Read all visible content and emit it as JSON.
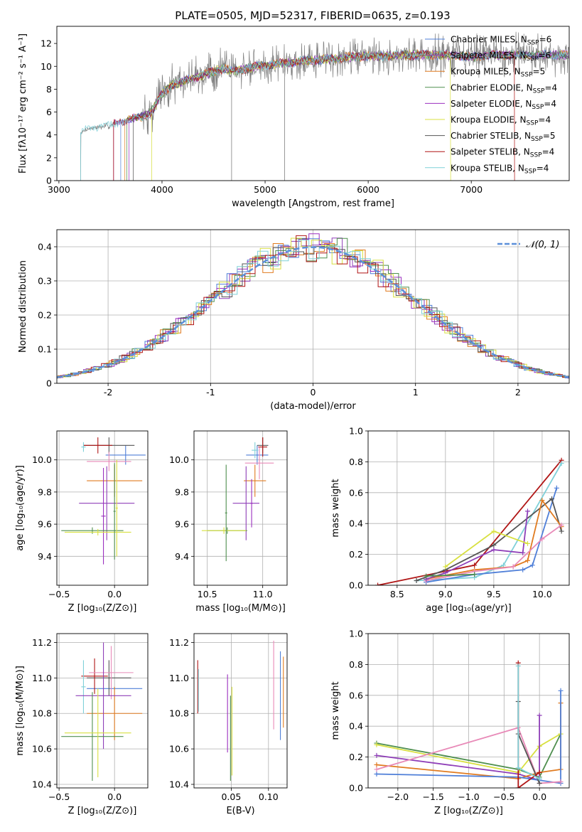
{
  "figure": {
    "title": "PLATE=0505, MJD=52317, FIBERID=0635, z=0.193"
  },
  "chart_data": [
    {
      "id": "spectrum",
      "type": "line",
      "xlabel": "wavelength [Angstrom, rest frame]",
      "ylabel": "Flux [fλ10⁻¹⁷ erg cm⁻² s⁻¹ A⁻¹]",
      "xlim": [
        2980,
        7950
      ],
      "ylim": [
        0,
        13.5
      ],
      "xticks": [
        3000,
        4000,
        5000,
        6000,
        7000
      ],
      "yticks": [
        0,
        2,
        4,
        6,
        8,
        10,
        12
      ],
      "grid": false,
      "legend_position": "right",
      "legend": [
        {
          "label": "Chabrier MILES, N_SSP=6",
          "color": "#4f7fd8"
        },
        {
          "label": "Salpeter MILES, N_SSP=6",
          "color": "#8f3fb8"
        },
        {
          "label": "Kroupa MILES, N_SSP=5",
          "color": "#e07b20"
        },
        {
          "label": "Chabrier ELODIE, N_SSP=4",
          "color": "#4f8f4f"
        },
        {
          "label": "Salpeter ELODIE, N_SSP=4",
          "color": "#9b2fbf"
        },
        {
          "label": "Kroupa ELODIE, N_SSP=4",
          "color": "#d8e040"
        },
        {
          "label": "Chabrier STELIB, N_SSP=5",
          "color": "#555555"
        },
        {
          "label": "Salpeter STELIB, N_SSP=4",
          "color": "#b01515"
        },
        {
          "label": "Kroupa STELIB, N_SSP=4",
          "color": "#7fd0d8"
        }
      ],
      "data_color": "#808080",
      "data_continuum": {
        "x": [
          3210,
          3300,
          3400,
          3500,
          3600,
          3700,
          3800,
          3900,
          4000,
          4100,
          4200,
          4300,
          4400,
          4500,
          4600,
          4700,
          4800,
          4900,
          5000,
          5200,
          5400,
          5600,
          5800,
          6000,
          6200,
          6400,
          6600,
          6800,
          7000,
          7200,
          7400
        ],
        "y": [
          4.2,
          4.6,
          4.7,
          4.8,
          5.2,
          5.4,
          5.6,
          6.0,
          7.6,
          8.4,
          8.6,
          9.0,
          9.2,
          9.6,
          9.8,
          9.6,
          9.7,
          10.0,
          10.1,
          10.3,
          10.5,
          10.6,
          10.8,
          10.9,
          10.9,
          11.0,
          11.0,
          11.0,
          10.8,
          11.0,
          11.0
        ]
      },
      "model_cutoffs": [
        {
          "model": "Kroupa STELIB",
          "start": 3210,
          "end": 7950
        },
        {
          "model": "Salpeter MILES",
          "start": 3530,
          "end": 7950
        },
        {
          "model": "Salpeter STELIB",
          "start": 3530,
          "end": 7420
        },
        {
          "model": "Kroupa ELODIE",
          "start": 3900,
          "end": 6800
        }
      ]
    },
    {
      "id": "residuals",
      "type": "line",
      "xlabel": "(data-model)/error",
      "ylabel": "Normed distribution",
      "xlim": [
        -2.5,
        2.5
      ],
      "ylim": [
        0,
        0.45
      ],
      "xticks": [
        -2,
        -1,
        0,
        1,
        2
      ],
      "yticks": [
        0.0,
        0.1,
        0.2,
        0.3,
        0.4
      ],
      "grid": true,
      "legend_position": "top-right",
      "legend": [
        {
          "label": "𝒩(0, 1)",
          "color": "#5b8fd9"
        }
      ],
      "reference_curve": {
        "name": "𝒩(0, 1)",
        "mean": 0,
        "sigma": 1
      },
      "series": [
        {
          "name": "Chabrier MILES",
          "color": "#4f7fd8"
        },
        {
          "name": "Salpeter MILES",
          "color": "#8f3fb8"
        },
        {
          "name": "Kroupa MILES",
          "color": "#e07b20"
        },
        {
          "name": "Chabrier ELODIE",
          "color": "#4f8f4f"
        },
        {
          "name": "Salpeter ELODIE",
          "color": "#9b2fbf"
        },
        {
          "name": "Kroupa ELODIE",
          "color": "#d8e040"
        },
        {
          "name": "Chabrier STELIB",
          "color": "#555555"
        },
        {
          "name": "Salpeter STELIB",
          "color": "#b01515"
        },
        {
          "name": "Kroupa STELIB",
          "color": "#7fd0d8"
        }
      ]
    },
    {
      "id": "z-age",
      "type": "scatter",
      "xlabel": "Z [log₁₀(Z/Z⊙)]",
      "ylabel": "age  [log₁₀(age/yr)]",
      "xlim": [
        -0.52,
        0.3
      ],
      "ylim": [
        9.22,
        10.18
      ],
      "xticks": [
        -0.5,
        0.0
      ],
      "xticklabels": [
        "−0.5",
        "0.0"
      ],
      "yticks": [
        9.4,
        9.6,
        9.8,
        10.0
      ],
      "yticklabels": [
        "9.4",
        "9.6",
        "9.8",
        "10.0"
      ],
      "grid": true,
      "points": [
        {
          "color": "#4f7fd8",
          "x": 0.1,
          "xerr": 0.18,
          "y": 10.03,
          "yerr": 0.06
        },
        {
          "color": "#555555",
          "x": -0.05,
          "xerr": 0.23,
          "y": 10.09,
          "yerr": 0.05
        },
        {
          "color": "#b01515",
          "x": -0.15,
          "xerr": 0.13,
          "y": 10.09,
          "yerr": 0.05
        },
        {
          "color": "#e88ab8",
          "x": -0.05,
          "xerr": 0.2,
          "y": 9.99,
          "yerr": 0.06
        },
        {
          "color": "#7fd0d8",
          "x": -0.28,
          "xerr": 0.02,
          "y": 10.08,
          "yerr": 0.03
        },
        {
          "color": "#e07b20",
          "x": 0.0,
          "xerr": 0.25,
          "y": 9.87,
          "yerr": 0.1
        },
        {
          "color": "#8f3fb8",
          "x": -0.07,
          "xerr": 0.25,
          "y": 9.73,
          "yerr": 0.23
        },
        {
          "color": "#9b2fbf",
          "x": -0.1,
          "xerr": 0.02,
          "y": 9.65,
          "yerr": 0.3
        },
        {
          "color": "#4f8f4f",
          "x": -0.2,
          "xerr": 0.28,
          "y": 9.56,
          "yerr": 0.02
        },
        {
          "color": "#d8e040",
          "x": -0.15,
          "xerr": 0.3,
          "y": 9.55,
          "yerr": 0.02
        },
        {
          "color": "#4f8f4f",
          "x": 0.0,
          "xerr": 0.01,
          "y": 9.68,
          "yerr": 0.3
        },
        {
          "color": "#d8e040",
          "x": 0.02,
          "xerr": 0.01,
          "y": 9.7,
          "yerr": 0.3
        }
      ]
    },
    {
      "id": "mass-age",
      "type": "scatter",
      "xlabel": "mass [log₁₀(M/M⊙)]",
      "ylabel": "",
      "xlim": [
        10.38,
        11.22
      ],
      "ylim": [
        9.22,
        10.18
      ],
      "xticks": [
        10.5,
        11.0
      ],
      "xticklabels": [
        "10.5",
        "11.0"
      ],
      "yticks": [
        9.4,
        9.6,
        9.8,
        10.0
      ],
      "yticklabels": [
        "9.4",
        "9.6",
        "9.8",
        "10.0"
      ],
      "grid": true,
      "points": [
        {
          "color": "#4f7fd8",
          "x": 10.95,
          "xerr": 0.1,
          "y": 10.03,
          "yerr": 0.06
        },
        {
          "color": "#555555",
          "x": 11.0,
          "xerr": 0.05,
          "y": 10.09,
          "yerr": 0.05
        },
        {
          "color": "#b01515",
          "x": 11.0,
          "xerr": 0.04,
          "y": 10.08,
          "yerr": 0.06
        },
        {
          "color": "#e88ab8",
          "x": 10.97,
          "xerr": 0.13,
          "y": 9.98,
          "yerr": 0.1
        },
        {
          "color": "#7fd0d8",
          "x": 10.93,
          "xerr": 0.03,
          "y": 10.06,
          "yerr": 0.05
        },
        {
          "color": "#e07b20",
          "x": 10.93,
          "xerr": 0.1,
          "y": 9.87,
          "yerr": 0.1
        },
        {
          "color": "#8f3fb8",
          "x": 10.85,
          "xerr": 0.12,
          "y": 9.73,
          "yerr": 0.23
        },
        {
          "color": "#9b2fbf",
          "x": 10.9,
          "xerr": 0.01,
          "y": 9.73,
          "yerr": 0.15
        },
        {
          "color": "#4f8f4f",
          "x": 10.68,
          "xerr": 0.18,
          "y": 9.56,
          "yerr": 0.02
        },
        {
          "color": "#d8e040",
          "x": 10.65,
          "xerr": 0.2,
          "y": 9.56,
          "yerr": 0.02
        },
        {
          "color": "#4f8f4f",
          "x": 10.67,
          "xerr": 0.01,
          "y": 9.67,
          "yerr": 0.3
        }
      ]
    },
    {
      "id": "age-weight",
      "type": "line",
      "xlabel": "age  [log₁₀(age/yr)]",
      "ylabel": "mass weight",
      "xlim": [
        8.2,
        10.28
      ],
      "ylim": [
        0,
        1
      ],
      "xticks": [
        8.5,
        9.0,
        9.5,
        10.0
      ],
      "xticklabels": [
        "8.5",
        "9.0",
        "9.5",
        "10.0"
      ],
      "yticks": [
        0.0,
        0.2,
        0.4,
        0.6,
        0.8,
        1.0
      ],
      "yticklabels": [
        "0.0",
        "0.2",
        "0.4",
        "0.6",
        "0.8",
        "1.0"
      ],
      "grid": true,
      "series": [
        {
          "color": "#b01515",
          "x": [
            8.3,
            9.3,
            10.2
          ],
          "y": [
            0.0,
            0.13,
            0.81
          ]
        },
        {
          "color": "#7fd0d8",
          "x": [
            8.7,
            9.3,
            9.6,
            10.2
          ],
          "y": [
            0.03,
            0.05,
            0.13,
            0.79
          ]
        },
        {
          "color": "#4f7fd8",
          "x": [
            8.8,
            9.3,
            9.8,
            9.9,
            10.15
          ],
          "y": [
            0.02,
            0.07,
            0.1,
            0.13,
            0.63
          ]
        },
        {
          "color": "#555555",
          "x": [
            8.7,
            9.0,
            9.5,
            10.1,
            10.2
          ],
          "y": [
            0.03,
            0.1,
            0.26,
            0.56,
            0.35
          ]
        },
        {
          "color": "#e07b20",
          "x": [
            8.8,
            9.3,
            9.7,
            9.85,
            10.0,
            10.2
          ],
          "y": [
            0.04,
            0.1,
            0.12,
            0.16,
            0.55,
            0.38
          ]
        },
        {
          "color": "#e88ab8",
          "x": [
            8.8,
            9.3,
            9.7,
            10.0,
            10.2
          ],
          "y": [
            0.03,
            0.09,
            0.12,
            0.3,
            0.39
          ]
        },
        {
          "color": "#8f3fb8",
          "x": [
            8.8,
            9.0,
            9.5,
            9.8,
            9.85
          ],
          "y": [
            0.04,
            0.08,
            0.23,
            0.21,
            0.48
          ]
        },
        {
          "color": "#d8e040",
          "x": [
            9.0,
            9.5,
            9.85
          ],
          "y": [
            0.12,
            0.35,
            0.27
          ]
        },
        {
          "color": "#4f8f4f",
          "x": [
            8.8,
            9.3
          ],
          "y": [
            0.06,
            0.07
          ]
        }
      ]
    },
    {
      "id": "z-mass",
      "type": "scatter",
      "xlabel": "Z [log₁₀(Z/Z⊙)]",
      "ylabel": "mass [log₁₀(M/M⊙)]",
      "xlim": [
        -0.52,
        0.3
      ],
      "ylim": [
        10.38,
        11.25
      ],
      "xticks": [
        -0.5,
        0.0
      ],
      "xticklabels": [
        "−0.5",
        "0.0"
      ],
      "yticks": [
        10.4,
        10.6,
        10.8,
        11.0,
        11.2
      ],
      "yticklabels": [
        "10.4",
        "10.6",
        "10.8",
        "11.0",
        "11.2"
      ],
      "grid": true,
      "points": [
        {
          "color": "#4f7fd8",
          "x": 0.0,
          "xerr": 0.25,
          "y": 10.94,
          "yerr": 0.0
        },
        {
          "color": "#555555",
          "x": -0.05,
          "xerr": 0.2,
          "y": 11.0,
          "yerr": 0.1
        },
        {
          "color": "#b01515",
          "x": -0.18,
          "xerr": 0.12,
          "y": 11.01,
          "yerr": 0.1
        },
        {
          "color": "#e88ab8",
          "x": -0.03,
          "xerr": 0.2,
          "y": 11.03,
          "yerr": 0.15
        },
        {
          "color": "#7fd0d8",
          "x": -0.28,
          "xerr": 0.02,
          "y": 10.95,
          "yerr": 0.15
        },
        {
          "color": "#e07b20",
          "x": 0.0,
          "xerr": 0.25,
          "y": 10.8,
          "yerr": 0.15
        },
        {
          "color": "#8f3fb8",
          "x": -0.1,
          "xerr": 0.25,
          "y": 10.9,
          "yerr": 0.3
        },
        {
          "color": "#4f8f4f",
          "x": -0.2,
          "xerr": 0.28,
          "y": 10.67,
          "yerr": 0.25
        },
        {
          "color": "#d8e040",
          "x": -0.15,
          "xerr": 0.3,
          "y": 10.69,
          "yerr": 0.25
        }
      ]
    },
    {
      "id": "ebv-mass",
      "type": "scatter",
      "xlabel": "E(B-V)",
      "ylabel": "",
      "xlim": [
        0.0,
        0.125
      ],
      "ylim": [
        10.38,
        11.25
      ],
      "xticks": [
        0.05,
        0.1
      ],
      "xticklabels": [
        "0.05",
        "0.10"
      ],
      "yticks": [
        10.4,
        10.6,
        10.8,
        11.0,
        11.2
      ],
      "yticklabels": [
        "10.4",
        "10.6",
        "10.8",
        "11.0",
        "11.2"
      ],
      "grid": true,
      "points": [
        {
          "color": "#b01515",
          "x": 0.005,
          "y": 10.95,
          "yerr": 0.15
        },
        {
          "color": "#7fd0d8",
          "x": 0.006,
          "y": 10.93,
          "yerr": 0.12
        },
        {
          "color": "#9b2fbf",
          "x": 0.045,
          "y": 10.8,
          "yerr": 0.22
        },
        {
          "color": "#4f8f4f",
          "x": 0.049,
          "y": 10.66,
          "yerr": 0.24
        },
        {
          "color": "#d8e040",
          "x": 0.051,
          "y": 10.7,
          "yerr": 0.25
        },
        {
          "color": "#e88ab8",
          "x": 0.107,
          "y": 10.96,
          "yerr": 0.25
        },
        {
          "color": "#4f7fd8",
          "x": 0.116,
          "y": 10.9,
          "yerr": 0.25
        },
        {
          "color": "#e07b20",
          "x": 0.12,
          "y": 10.92,
          "yerr": 0.2
        }
      ]
    },
    {
      "id": "z-weight",
      "type": "line",
      "xlabel": "Z [log₁₀(Z/Z⊙)]",
      "ylabel": "mass weight",
      "xlim": [
        -2.42,
        0.42
      ],
      "ylim": [
        0,
        1
      ],
      "xticks": [
        -2.0,
        -1.5,
        -1.0,
        -0.5,
        0.0
      ],
      "xticklabels": [
        "−2.0",
        "−1.5",
        "−1.0",
        "−0.5",
        "0.0"
      ],
      "yticks": [
        0.0,
        0.2,
        0.4,
        0.6,
        0.8,
        1.0
      ],
      "yticklabels": [
        "0.0",
        "0.2",
        "0.4",
        "0.6",
        "0.8",
        "1.0"
      ],
      "grid": true,
      "series": [
        {
          "color": "#4f8f4f",
          "x": [
            -2.3,
            -0.3,
            0.0,
            0.3
          ],
          "y": [
            0.29,
            0.12,
            0.07,
            0.35
          ]
        },
        {
          "color": "#d8e040",
          "x": [
            -2.3,
            -0.3,
            0.0,
            0.3
          ],
          "y": [
            0.28,
            0.1,
            0.27,
            0.35
          ]
        },
        {
          "color": "#8f3fb8",
          "x": [
            -2.3,
            -0.3,
            0.0,
            0.0
          ],
          "y": [
            0.21,
            0.09,
            0.05,
            0.47
          ]
        },
        {
          "color": "#e07b20",
          "x": [
            -2.3,
            -0.3,
            0.0,
            0.3,
            0.3
          ],
          "y": [
            0.15,
            0.06,
            0.1,
            0.12,
            0.55
          ]
        },
        {
          "color": "#4f7fd8",
          "x": [
            -2.3,
            -0.3,
            0.0,
            0.3,
            0.3
          ],
          "y": [
            0.09,
            0.07,
            0.05,
            0.03,
            0.63
          ]
        },
        {
          "color": "#e88ab8",
          "x": [
            -2.3,
            -0.3,
            0.0,
            0.3
          ],
          "y": [
            0.12,
            0.39,
            0.03,
            0.04
          ]
        },
        {
          "color": "#555555",
          "x": [
            -0.3,
            -0.3,
            0.0
          ],
          "y": [
            0.56,
            0.35,
            0.03
          ]
        },
        {
          "color": "#b01515",
          "x": [
            -0.3,
            -0.3,
            0.0
          ],
          "y": [
            0.81,
            0.0,
            0.1
          ]
        },
        {
          "color": "#7fd0d8",
          "x": [
            -0.3,
            -0.3,
            0.0
          ],
          "y": [
            0.79,
            0.13,
            0.06
          ]
        }
      ]
    }
  ]
}
